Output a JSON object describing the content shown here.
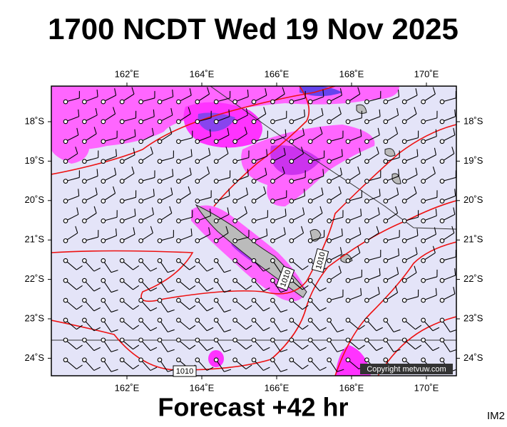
{
  "header": {
    "title": "1700 NCDT Wed 19 Nov 2025"
  },
  "map": {
    "lon_labels": [
      "162˚E",
      "164˚E",
      "166˚E",
      "168˚E",
      "170˚E"
    ],
    "lat_labels": [
      "18˚S",
      "19˚S",
      "20˚S",
      "21˚S",
      "22˚S",
      "23˚S",
      "24˚S"
    ],
    "isobar_labels": [
      "1010",
      "1010",
      "1010"
    ],
    "copyright": "Copyright metvuw.com"
  },
  "footer": {
    "forecast": "Forecast +42 hr",
    "image_id": "IM2"
  }
}
